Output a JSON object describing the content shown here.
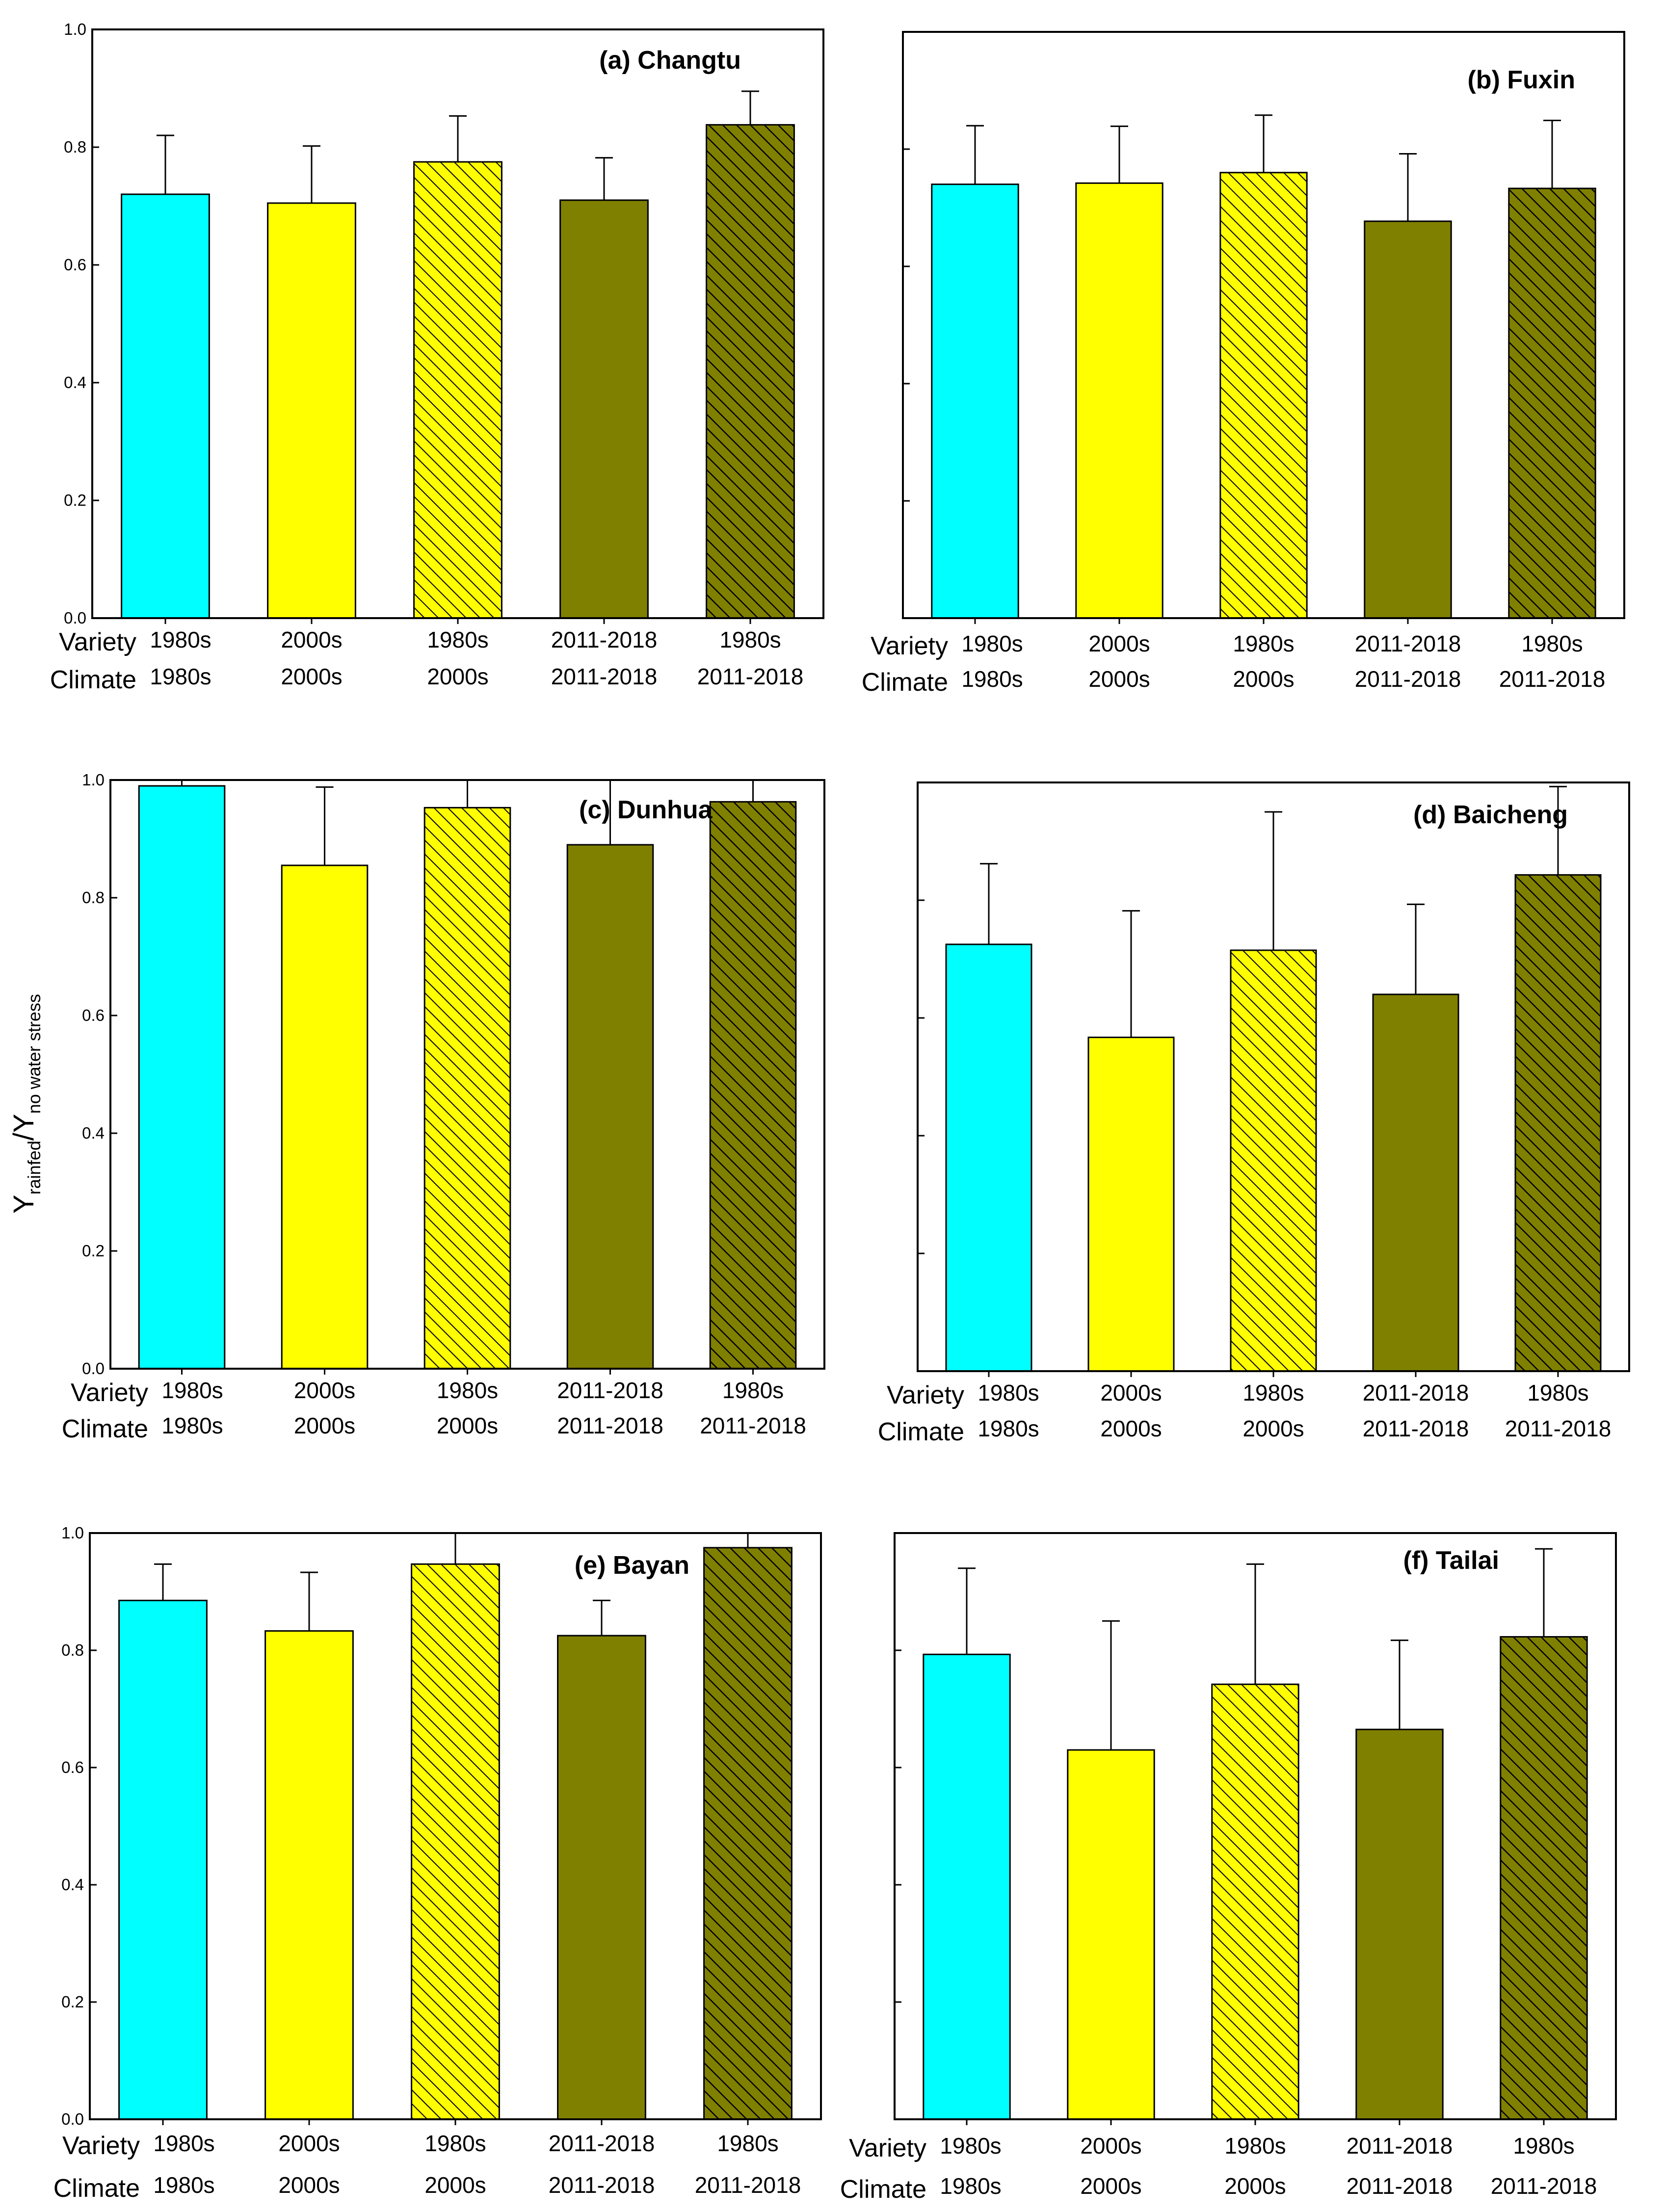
{
  "ylabel": {
    "main": "Y",
    "sub1": "rainfed",
    "slash": "/Y",
    "sub2": "no water stress"
  },
  "rows": {
    "variety": "Variety",
    "climate": "Climate"
  },
  "scenarios": [
    {
      "variety": "1980s",
      "climate": "1980s",
      "color": "#00FFFF",
      "hatch": "none"
    },
    {
      "variety": "2000s",
      "climate": "2000s",
      "color": "#FFFF00",
      "hatch": "none"
    },
    {
      "variety": "1980s",
      "climate": "2000s",
      "color": "#FFFF00",
      "hatch": "hatch-light"
    },
    {
      "variety": "2011-2018",
      "climate": "2011-2018",
      "color": "#808000",
      "hatch": "none"
    },
    {
      "variety": "1980s",
      "climate": "2011-2018",
      "color": "#808000",
      "hatch": "hatch-dark"
    }
  ],
  "chart_data": [
    {
      "type": "bar",
      "title": "(a) Changtu",
      "ylim": [
        0,
        1.0
      ],
      "yticks": [
        "0.0",
        "0.2",
        "0.4",
        "0.6",
        "0.8",
        "1.0"
      ],
      "values": [
        0.72,
        0.705,
        0.775,
        0.71,
        0.838
      ],
      "errors": [
        0.1,
        0.097,
        0.078,
        0.072,
        0.057
      ]
    },
    {
      "type": "bar",
      "title": "(b) Fuxin",
      "ylim": [
        0,
        1.0
      ],
      "yticks": [
        "",
        "",
        "",
        "",
        "",
        ""
      ],
      "values": [
        0.74,
        0.742,
        0.76,
        0.677,
        0.733
      ],
      "errors": [
        0.1,
        0.097,
        0.098,
        0.115,
        0.116
      ]
    },
    {
      "type": "bar",
      "title": "(c) Dunhua",
      "ylim": [
        0,
        1.0
      ],
      "yticks": [
        "0.0",
        "0.2",
        "0.4",
        "0.6",
        "0.8",
        "1.0"
      ],
      "values": [
        0.99,
        0.855,
        0.953,
        0.89,
        0.963
      ],
      "errors": [
        0.012,
        0.133,
        0.06,
        0.11,
        0.05
      ]
    },
    {
      "type": "bar",
      "title": "(d) Baicheng",
      "ylim": [
        0,
        1.0
      ],
      "yticks": [
        "",
        "",
        "",
        "",
        "",
        ""
      ],
      "values": [
        0.725,
        0.567,
        0.715,
        0.64,
        0.843
      ],
      "errors": [
        0.137,
        0.215,
        0.235,
        0.153,
        0.15
      ]
    },
    {
      "type": "bar",
      "title": "(e) Bayan",
      "ylim": [
        0,
        1.0
      ],
      "yticks": [
        "0.0",
        "0.2",
        "0.4",
        "0.6",
        "0.8",
        "1.0"
      ],
      "values": [
        0.885,
        0.833,
        0.947,
        0.825,
        0.975
      ],
      "errors": [
        0.062,
        0.1,
        0.06,
        0.06,
        0.03
      ]
    },
    {
      "type": "bar",
      "title": "(f) Tailai",
      "ylim": [
        0,
        1.0
      ],
      "yticks": [
        "",
        "",
        "",
        "",
        "",
        ""
      ],
      "values": [
        0.793,
        0.63,
        0.742,
        0.665,
        0.823
      ],
      "errors": [
        0.147,
        0.22,
        0.205,
        0.152,
        0.15
      ]
    }
  ]
}
